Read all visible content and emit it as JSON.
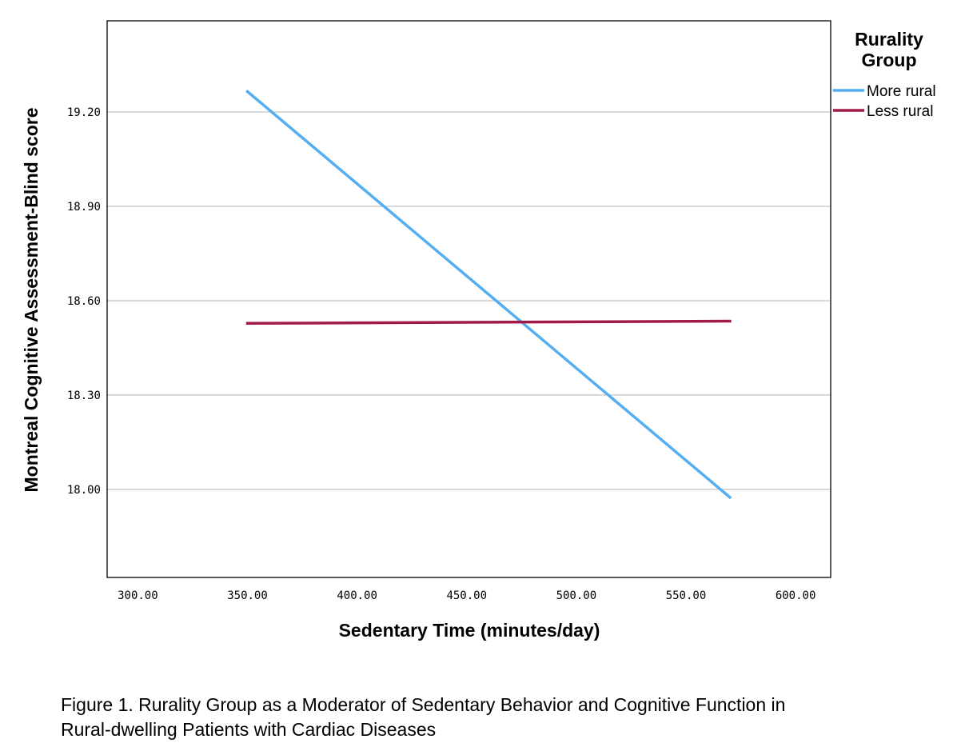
{
  "chart_data": {
    "type": "line",
    "title": "",
    "xlabel": "Sedentary Time (minutes/day)",
    "ylabel": "Montreal Cognitive Assessment-Blind score",
    "xlim": [
      286,
      616
    ],
    "ylim": [
      17.72,
      19.49
    ],
    "x_ticks": [
      300,
      350,
      400,
      450,
      500,
      550,
      600
    ],
    "x_tick_labels": [
      "300.00",
      "350.00",
      "400.00",
      "450.00",
      "500.00",
      "550.00",
      "600.00"
    ],
    "y_ticks": [
      18.0,
      18.3,
      18.6,
      18.9,
      19.2
    ],
    "y_tick_labels": [
      "18.00",
      "18.30",
      "18.60",
      "18.90",
      "19.20"
    ],
    "grid": "horizontal",
    "legend_title": [
      "Rurality",
      "Group"
    ],
    "legend_position": "top-right, outside plot",
    "series": [
      {
        "name": "More rural",
        "color": "#55aef0",
        "x": [
          350,
          570
        ],
        "values": [
          19.265,
          17.975
        ]
      },
      {
        "name": "Less rural",
        "color": "#a01a4a",
        "x": [
          350,
          570
        ],
        "values": [
          18.528,
          18.535
        ]
      }
    ]
  },
  "caption": {
    "line1": "Figure 1. Rurality Group as a Moderator of Sedentary Behavior and Cognitive Function in",
    "line2": "Rural-dwelling Patients with Cardiac Diseases"
  }
}
